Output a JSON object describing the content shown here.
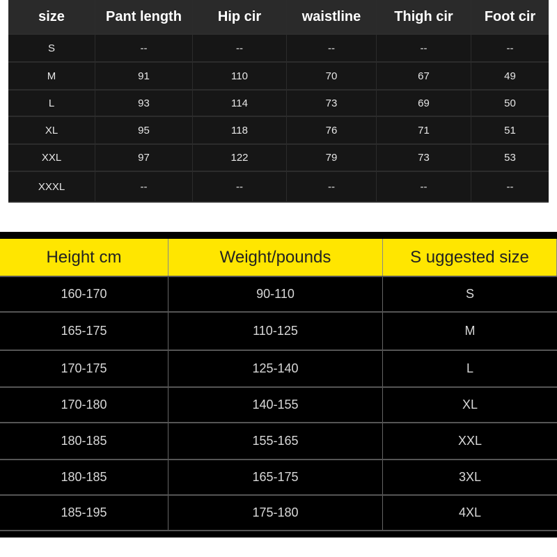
{
  "size_chart": {
    "headers": [
      "size",
      "Pant length",
      "Hip cir",
      "waistline",
      "Thigh cir",
      "Foot cir"
    ],
    "rows": [
      [
        "S",
        "--",
        "--",
        "--",
        "--",
        "--"
      ],
      [
        "M",
        "91",
        "110",
        "70",
        "67",
        "49"
      ],
      [
        "L",
        "93",
        "114",
        "73",
        "69",
        "50"
      ],
      [
        "XL",
        "95",
        "118",
        "76",
        "71",
        "51"
      ],
      [
        "XXL",
        "97",
        "122",
        "79",
        "73",
        "53"
      ],
      [
        "XXXL",
        "--",
        "--",
        "--",
        "--",
        "--"
      ]
    ]
  },
  "suggestion_chart": {
    "header_color": "#ffe600",
    "headers": [
      "Height cm",
      "Weight/pounds",
      "S uggested size"
    ],
    "rows": [
      [
        "160-170",
        "90-110",
        "S"
      ],
      [
        "165-175",
        "110-125",
        "M"
      ],
      [
        "170-175",
        "125-140",
        "L"
      ],
      [
        "170-180",
        "140-155",
        "XL"
      ],
      [
        "180-185",
        "155-165",
        "XXL"
      ],
      [
        "180-185",
        "165-175",
        "3XL"
      ],
      [
        "185-195",
        "175-180",
        "4XL"
      ]
    ]
  }
}
